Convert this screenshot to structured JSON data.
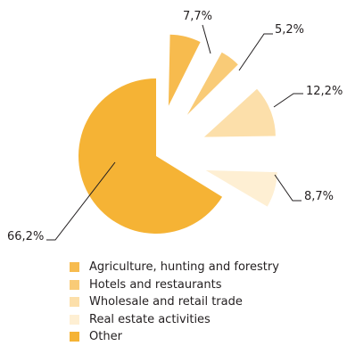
{
  "chart_data": {
    "type": "pie",
    "exploded": true,
    "slices": [
      {
        "label": "Agriculture, hunting and forestry",
        "value": 7.7,
        "display": "7,7%",
        "color": "#F7BB4E"
      },
      {
        "label": "Hotels and restaurants",
        "value": 5.2,
        "display": "5,2%",
        "color": "#F9CB77"
      },
      {
        "label": "Wholesale and retail trade",
        "value": 12.2,
        "display": "12,2%",
        "color": "#FCDFAA"
      },
      {
        "label": "Real estate activities",
        "value": 8.7,
        "display": "8,7%",
        "color": "#FEEFD3"
      },
      {
        "label": "Other",
        "value": 66.2,
        "display": "66,2%",
        "color": "#F5B335"
      }
    ],
    "legend_position": "bottom"
  }
}
